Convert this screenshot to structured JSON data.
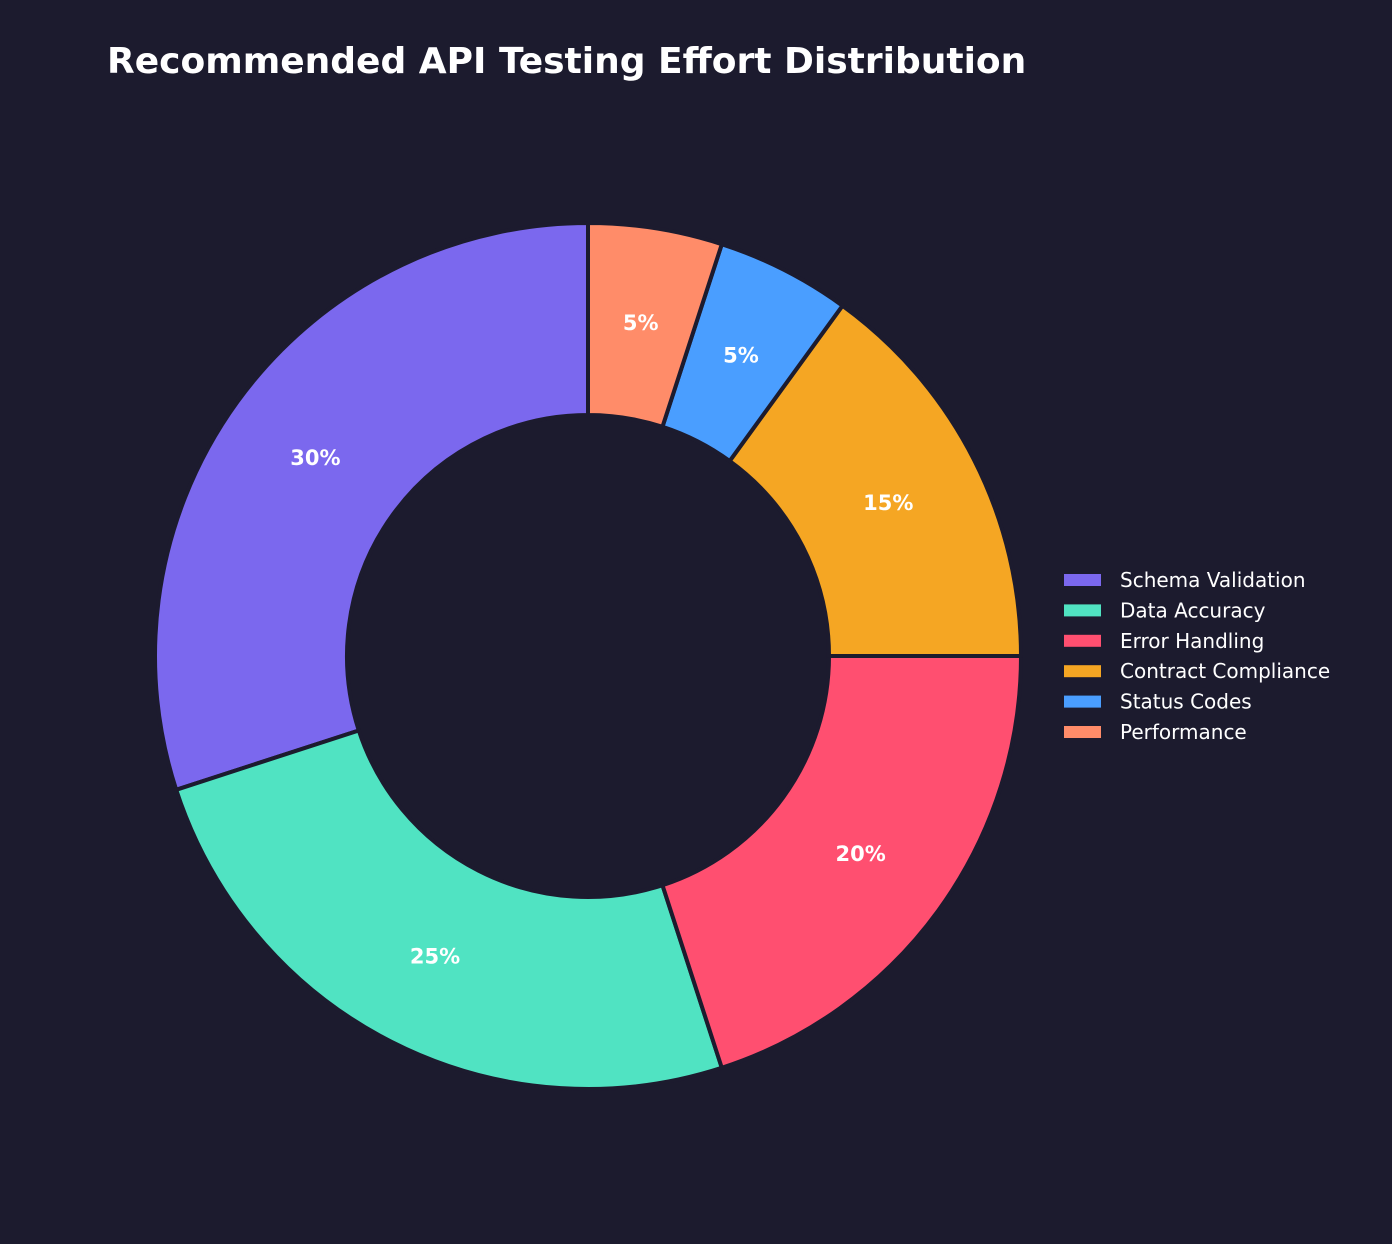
{
  "chart_data": {
    "type": "pie",
    "variant": "donut",
    "title": "Recommended API Testing Effort Distribution",
    "categories": [
      "Schema Validation",
      "Data Accuracy",
      "Error Handling",
      "Contract Compliance",
      "Status Codes",
      "Performance"
    ],
    "values": [
      30,
      25,
      20,
      15,
      5,
      5
    ],
    "value_labels": [
      "30%",
      "25%",
      "20%",
      "15%",
      "5%",
      "5%"
    ],
    "colors": [
      "#7b68ee",
      "#50e3c2",
      "#ff4f70",
      "#f5a623",
      "#4a9eff",
      "#ff8c69"
    ],
    "start_angle_deg": 90,
    "direction": "counterclockwise",
    "legend_position": "right"
  },
  "theme": {
    "background": "#1c1b2e",
    "text_color": "#ffffff",
    "edge_color": "#1c1b2e"
  }
}
